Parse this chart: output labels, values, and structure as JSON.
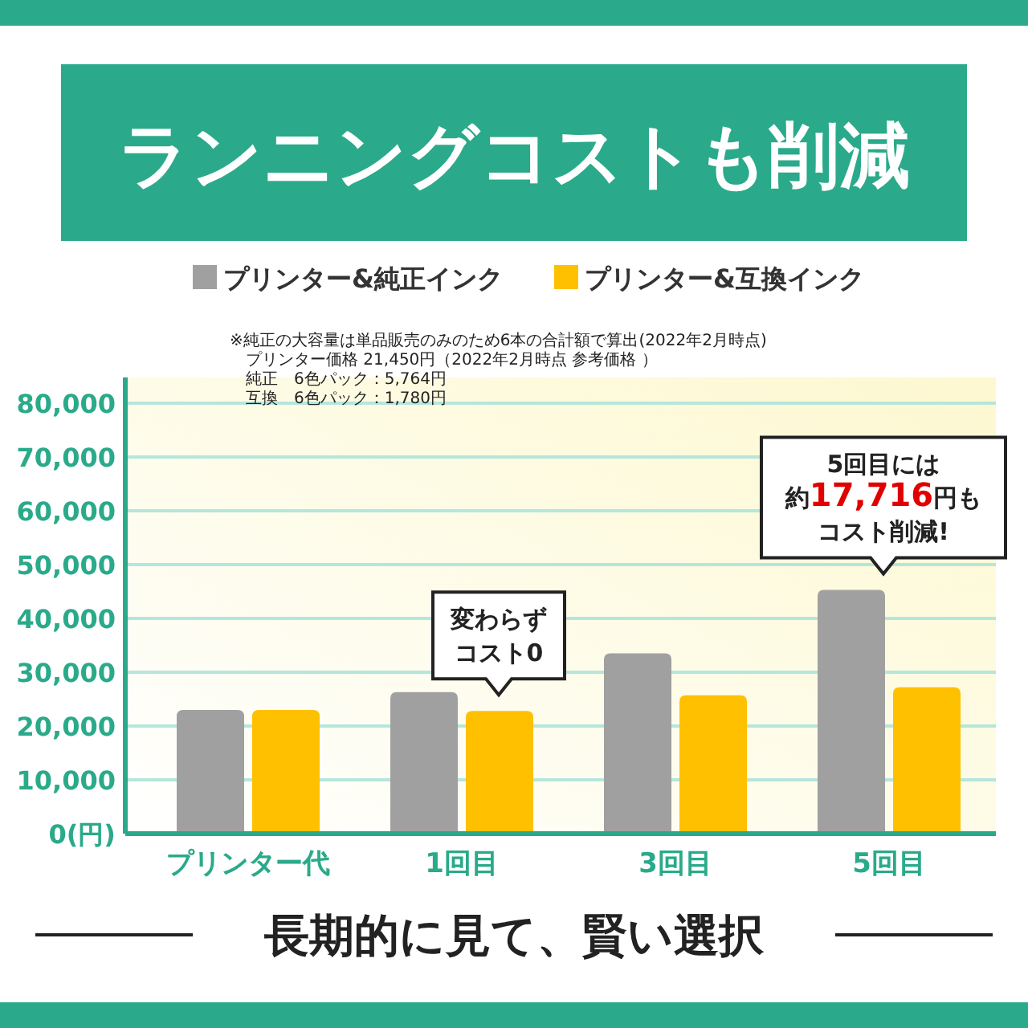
{
  "chart_data": {
    "type": "bar",
    "title": "ランニングコストも削減",
    "categories": [
      "プリンター代",
      "1回目",
      "3回目",
      "5回目"
    ],
    "series": [
      {
        "name": "プリンター&純正インク",
        "color": "#a0a0a0",
        "values": [
          23000,
          26300,
          33500,
          45300
        ]
      },
      {
        "name": "プリンター&互換インク",
        "color": "#ffc000",
        "values": [
          23000,
          22800,
          25700,
          27200
        ]
      }
    ],
    "ylim": [
      0,
      80000
    ],
    "yticks": [
      {
        "value": 0,
        "label": "0(円)"
      },
      {
        "value": 10000,
        "label": "10,000"
      },
      {
        "value": 20000,
        "label": "20,000"
      },
      {
        "value": 30000,
        "label": "30,000"
      },
      {
        "value": 40000,
        "label": "40,000"
      },
      {
        "value": 50000,
        "label": "50,000"
      },
      {
        "value": 60000,
        "label": "60,000"
      },
      {
        "value": 70000,
        "label": "70,000"
      },
      {
        "value": 80000,
        "label": "80,000"
      }
    ],
    "grid": "y",
    "legend": "top",
    "annotations": [
      "※純正の大容量は単品販売のみのため6本の合計額で算出(2022年2月時点)",
      "プリンター価格 21,450円（2022年2月時点 参考価格 ）",
      "純正　6色パック：5,764円",
      "互換　6色パック：1,780円",
      "変わらず",
      "コスト0",
      "5回目には",
      "約17,716円も",
      "コスト削減!",
      "長期的に見て、賢い選択"
    ]
  }
}
